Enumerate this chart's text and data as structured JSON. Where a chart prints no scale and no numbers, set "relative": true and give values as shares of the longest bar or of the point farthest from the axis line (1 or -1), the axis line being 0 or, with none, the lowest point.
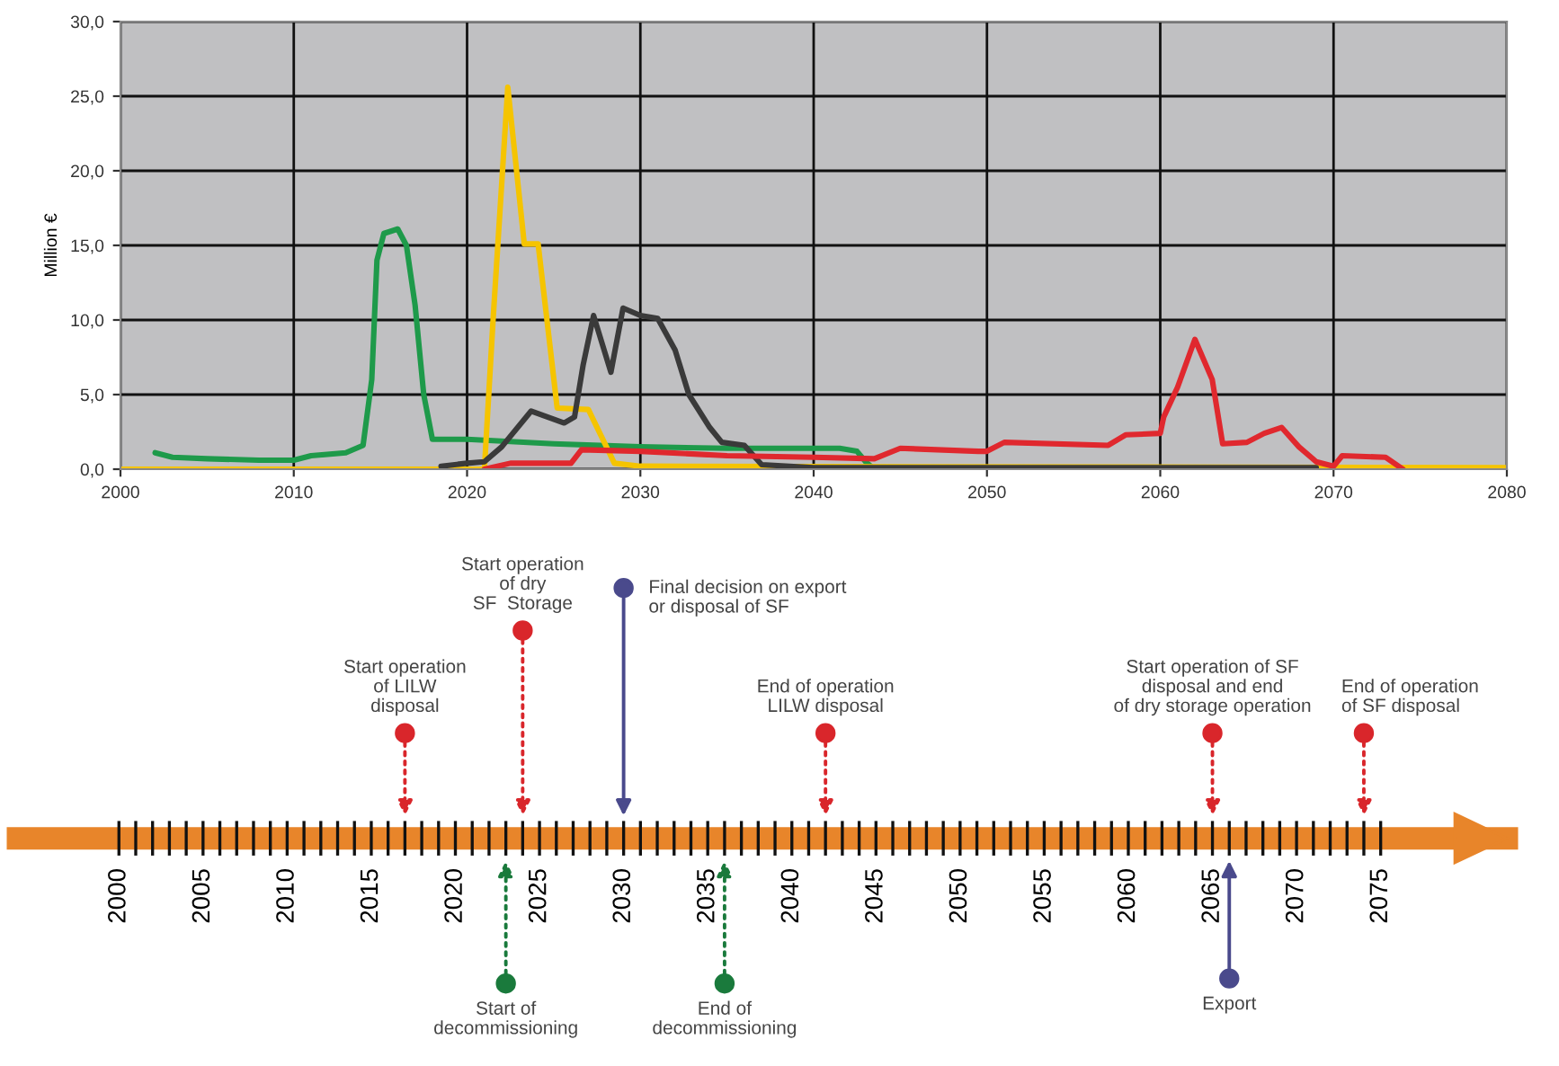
{
  "chart_data": [
    {
      "type": "line",
      "ylabel": "Million €",
      "xlim": [
        2000,
        2080
      ],
      "xticks": [
        2000,
        2010,
        2020,
        2030,
        2040,
        2050,
        2060,
        2070,
        2080
      ],
      "ylim": [
        0,
        30
      ],
      "yticks": [
        {
          "value": 0,
          "label": "0,0"
        },
        {
          "value": 5,
          "label": "5,0"
        },
        {
          "value": 10,
          "label": "10,0"
        },
        {
          "value": 15,
          "label": "15,0"
        },
        {
          "value": 20,
          "label": "20,0"
        },
        {
          "value": 25,
          "label": "25,0"
        },
        {
          "value": 30,
          "label": "30,0"
        }
      ],
      "grid": true,
      "legend": false,
      "marker": "none",
      "line_style": "solid",
      "series": [
        {
          "color": "#1e9a4a",
          "x": [
            2002,
            2003,
            2005,
            2008,
            2010,
            2011,
            2013,
            2014,
            2014.5,
            2014.8,
            2015.2,
            2016,
            2016.5,
            2017,
            2017.5,
            2018,
            2020,
            2025,
            2030,
            2035,
            2040,
            2041.5,
            2042.5,
            2043,
            2043.5
          ],
          "values": [
            1.1,
            0.8,
            0.7,
            0.6,
            0.6,
            0.9,
            1.1,
            1.6,
            6,
            14,
            15.8,
            16.1,
            15,
            11,
            5,
            2.0,
            2.0,
            1.7,
            1.5,
            1.4,
            1.4,
            1.4,
            1.2,
            0.5,
            0
          ]
        },
        {
          "color": "#f5c400",
          "x": [
            2000,
            2021,
            2021.5,
            2022.35,
            2023.3,
            2024.1,
            2025.2,
            2027,
            2028.5,
            2030,
            2080
          ],
          "values": [
            0,
            0,
            10,
            25.6,
            15.1,
            15.1,
            4.1,
            4.0,
            0.4,
            0.2,
            0.1
          ]
        },
        {
          "color": "#3a3a3a",
          "x": [
            2018.5,
            2020,
            2021,
            2022,
            2023.7,
            2025.6,
            2026.2,
            2026.7,
            2027.3,
            2028.3,
            2029,
            2030,
            2031,
            2032,
            2032.8,
            2034,
            2034.7,
            2036,
            2037,
            2040,
            2069
          ],
          "values": [
            0.2,
            0.4,
            0.5,
            1.5,
            3.9,
            3.1,
            3.5,
            7,
            10.3,
            6.5,
            10.8,
            10.3,
            10.1,
            8,
            5,
            2.8,
            1.8,
            1.6,
            0.3,
            0.1,
            0.1
          ]
        },
        {
          "color": "#e0282e",
          "x": [
            2021,
            2022.5,
            2026,
            2026.6,
            2030,
            2035,
            2040,
            2043.5,
            2045,
            2049.5,
            2050,
            2051,
            2057,
            2058,
            2060,
            2060.2,
            2061,
            2062,
            2063,
            2063.6,
            2065,
            2066,
            2067,
            2068,
            2069,
            2070,
            2070.5,
            2073,
            2074
          ],
          "values": [
            0,
            0.4,
            0.4,
            1.3,
            1.2,
            0.9,
            0.8,
            0.7,
            1.4,
            1.2,
            1.2,
            1.8,
            1.6,
            2.3,
            2.4,
            3.5,
            5.5,
            8.7,
            6.0,
            1.7,
            1.8,
            2.4,
            2.8,
            1.5,
            0.5,
            0.2,
            0.9,
            0.8,
            0
          ]
        }
      ]
    },
    {
      "type": "scatter",
      "relative": true,
      "xlim": [
        1994,
        2082.5
      ],
      "marker": "circle",
      "x": [
        2017,
        2024,
        2030,
        2042,
        2065,
        2074,
        2023,
        2036,
        2066
      ],
      "values": [
        0.42,
        0.83,
        1,
        0.42,
        0.42,
        0.42,
        -0.58,
        -0.58,
        -0.56
      ],
      "xticks": [
        2000,
        2005,
        2010,
        2015,
        2020,
        2025,
        2030,
        2035,
        2040,
        2045,
        2050,
        2055,
        2060,
        2065,
        2070,
        2075
      ],
      "annotations": [
        {
          "text": "Start operation\nof LILW\ndisposal",
          "x": 2017,
          "y": 0.42
        },
        {
          "text": "Start operation\nof dry\nSF  Storage",
          "x": 2024,
          "y": 0.83
        },
        {
          "text": "Final decision on export\nor disposal of SF",
          "x": 2030,
          "y": 1
        },
        {
          "text": "End of operation\nLILW disposal",
          "x": 2042,
          "y": 0.42
        },
        {
          "text": "Start operation of SF\ndisposal and end\nof dry storage operation",
          "x": 2065,
          "y": 0.42
        },
        {
          "text": "End of operation\nof SF disposal",
          "x": 2074,
          "y": 0.42
        },
        {
          "text": "Start of\ndecommissioning",
          "x": 2023,
          "y": -0.58
        },
        {
          "text": "End of\ndecommissioning",
          "x": 2036,
          "y": -0.58
        },
        {
          "text": "Export",
          "x": 2066,
          "y": -0.56
        }
      ],
      "colors": [
        "#d9262b",
        "#d9262b",
        "#4a4a8c",
        "#d9262b",
        "#d9262b",
        "#d9262b",
        "#1a7a3c",
        "#1a7a3c",
        "#4a4a8c"
      ]
    }
  ]
}
